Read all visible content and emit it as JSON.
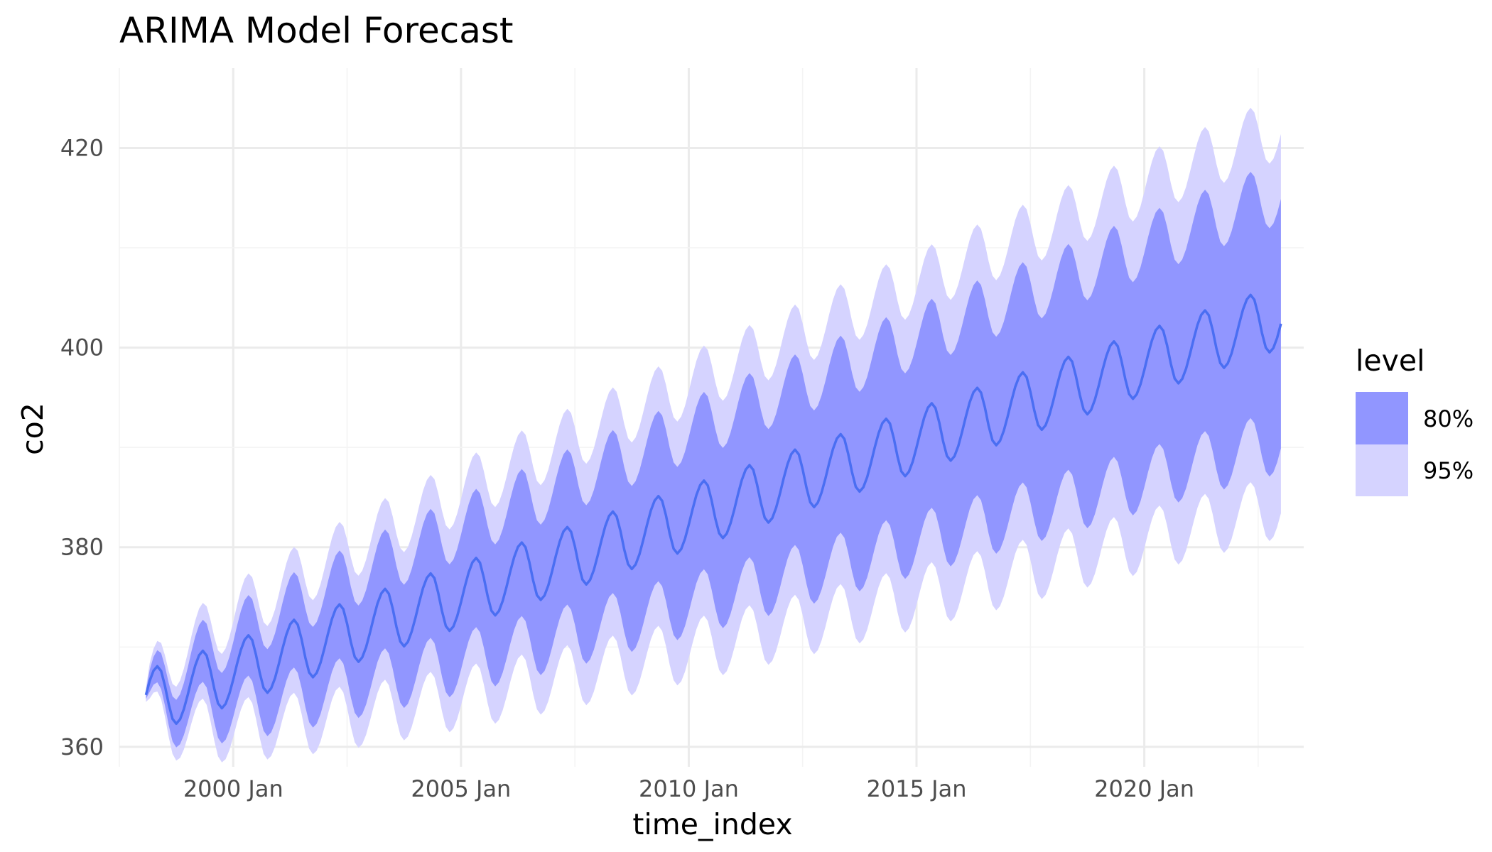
{
  "colors": {
    "background": "#ffffff",
    "grid_major": "#ebebeb",
    "grid_minor": "#f4f4f4",
    "band_80": "#9196ff",
    "band_95": "#d5d3ff",
    "line": "#4a6ef2"
  },
  "chart_data": {
    "type": "line",
    "title": "ARIMA Model Forecast",
    "xlabel": "time_index",
    "ylabel": "co2",
    "x_ticks": [
      "2000 Jan",
      "2005 Jan",
      "2010 Jan",
      "2015 Jan",
      "2020 Jan"
    ],
    "y_ticks": [
      "360",
      "380",
      "400",
      "420"
    ],
    "ylim": [
      358,
      428
    ],
    "xlim": [
      "1997-07",
      "2023-07"
    ],
    "grid": true,
    "legend": {
      "title": "level",
      "position": "right",
      "entries": [
        "80%",
        "95%"
      ]
    },
    "series": {
      "start": "1998-02",
      "end": "2023-01",
      "frequency": "monthly",
      "start_value": 365.2,
      "trend_per_year": 1.55,
      "seasonal_peak_month": "May",
      "seasonal_trough_month": "October",
      "seasonal_amplitude": 3.2,
      "interval_80_halfwidth_start": 0.4,
      "interval_80_halfwidth_end": 12.5,
      "interval_95_halfwidth_start": 0.7,
      "interval_95_halfwidth_end": 19.0
    }
  }
}
